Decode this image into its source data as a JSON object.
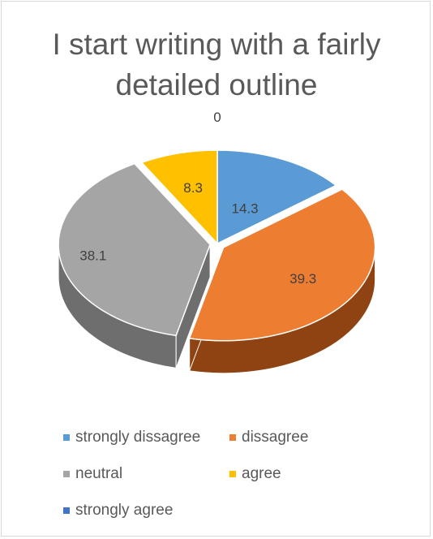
{
  "chart_data": {
    "type": "pie",
    "title": "I start writing with a fairly detailed outline",
    "categories": [
      "strongly dissagree",
      "dissagree",
      "neutral",
      "agree",
      "strongly agree"
    ],
    "values": [
      14.3,
      39.3,
      38.1,
      8.3,
      0
    ],
    "data_labels": [
      "14.3",
      "39.3",
      "38.1",
      "8.3",
      "0"
    ],
    "colors": [
      "#5b9bd5",
      "#ed7d31",
      "#a5a5a5",
      "#ffc000",
      "#4472c4"
    ],
    "side_colors": [
      "#3a6d9e",
      "#8f4313",
      "#6e6e6e",
      "#b38600",
      "#2c4f8f"
    ],
    "exploded": [
      "dissagree",
      "neutral"
    ],
    "style": "3d",
    "legend_position": "bottom"
  }
}
